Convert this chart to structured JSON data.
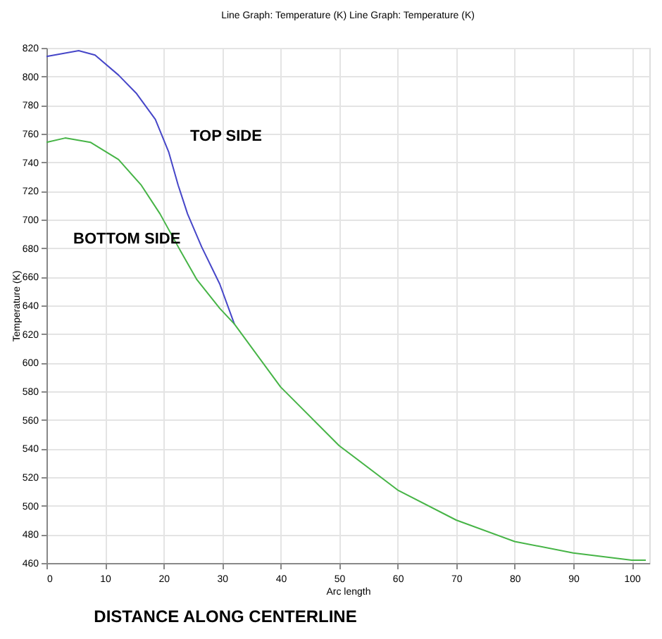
{
  "chart_data": {
    "type": "line",
    "title": "Line Graph: Temperature (K) Line Graph: Temperature (K)",
    "xlabel": "Arc length",
    "ylabel": "Temperature (K)",
    "annotations": [
      "DISTANCE ALONG CENTERLINE"
    ],
    "series": [
      {
        "name": "TOP SIDE",
        "color": "#4646c8",
        "x": [
          0,
          5.5,
          8.3,
          12.3,
          15.4,
          18.6,
          20.9,
          22.5,
          24.1,
          26.5,
          29.6,
          32.1
        ],
        "values": [
          814,
          818,
          815,
          801,
          788,
          770,
          747,
          724,
          704,
          681,
          655,
          627
        ]
      },
      {
        "name": "BOTTOM SIDE",
        "color": "#46b446",
        "x": [
          0,
          3.2,
          7.5,
          12.3,
          16.2,
          19.4,
          22.5,
          25.7,
          29.6,
          32.1,
          40,
          50,
          60,
          70,
          80,
          90,
          100,
          102.4
        ],
        "values": [
          754,
          757,
          754,
          742,
          724,
          704,
          681,
          658,
          638,
          627,
          583,
          542,
          511,
          490,
          475,
          467,
          462,
          462
        ]
      }
    ],
    "xlim": [
      0,
      103
    ],
    "xticks": [
      0,
      10,
      20,
      30,
      40,
      50,
      60,
      70,
      80,
      90,
      100
    ],
    "ylim": [
      460,
      820
    ],
    "yticks": [
      460,
      480,
      500,
      520,
      540,
      560,
      580,
      600,
      620,
      640,
      660,
      680,
      700,
      720,
      740,
      760,
      780,
      800,
      820
    ],
    "grid": true,
    "line_style": "solid",
    "marker": "none"
  }
}
